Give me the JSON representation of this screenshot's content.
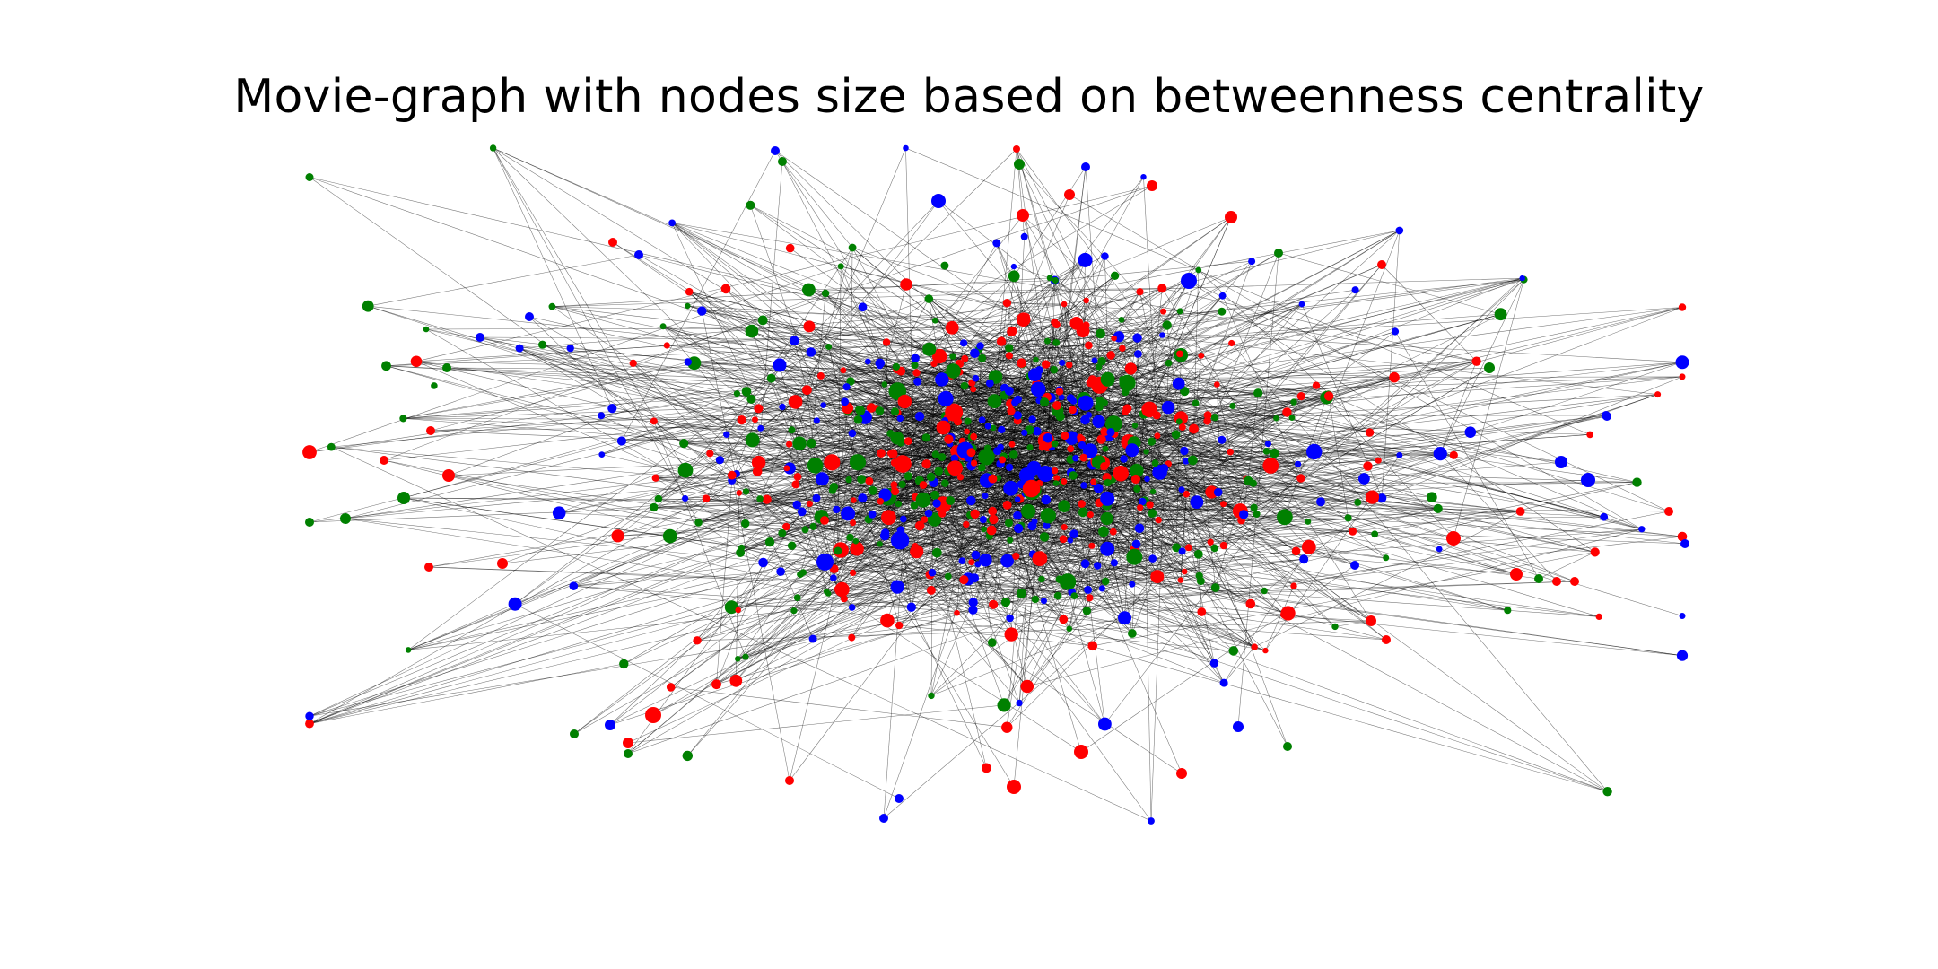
{
  "figure": {
    "title": "Movie-graph with nodes size based on betweenness centrality"
  },
  "graph": {
    "node_colors": {
      "red": "#ff0000",
      "green": "#008000",
      "blue": "#0000ff"
    },
    "edge_color": "#000000",
    "background": "#ffffff"
  }
}
